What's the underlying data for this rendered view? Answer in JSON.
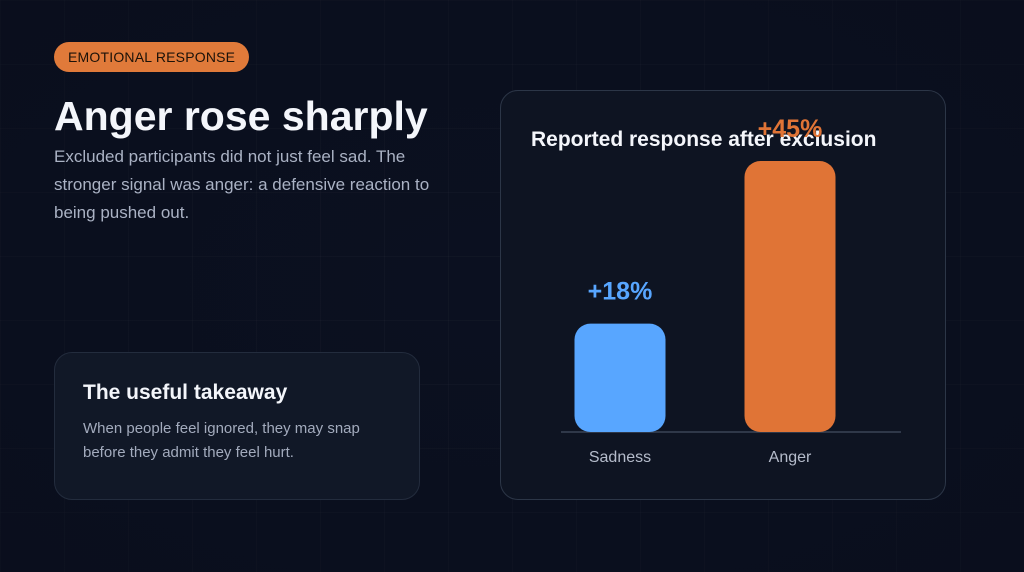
{
  "badge": {
    "label": "EMOTIONAL RESPONSE"
  },
  "headline": "Anger rose sharply",
  "subtext": "Excluded participants did not just feel sad. The stronger signal was anger: a defensive reaction to being pushed out.",
  "takeaway": {
    "title": "The useful takeaway",
    "body": "When people feel ignored, they may snap before they admit they feel hurt."
  },
  "colors": {
    "accent": "#e07a3a",
    "sadness": "#58a6ff",
    "anger": "#e07436",
    "background": "#0b1020"
  },
  "chart_data": {
    "type": "bar",
    "title": "Reported response after exclusion",
    "categories": [
      "Sadness",
      "Anger"
    ],
    "values": [
      18,
      45
    ],
    "value_labels": [
      "+18%",
      "+45%"
    ],
    "colors": [
      "#58a6ff",
      "#e07436"
    ],
    "xlabel": "",
    "ylabel": "",
    "ylim": [
      0,
      45
    ],
    "grid": false,
    "legend": "none"
  }
}
